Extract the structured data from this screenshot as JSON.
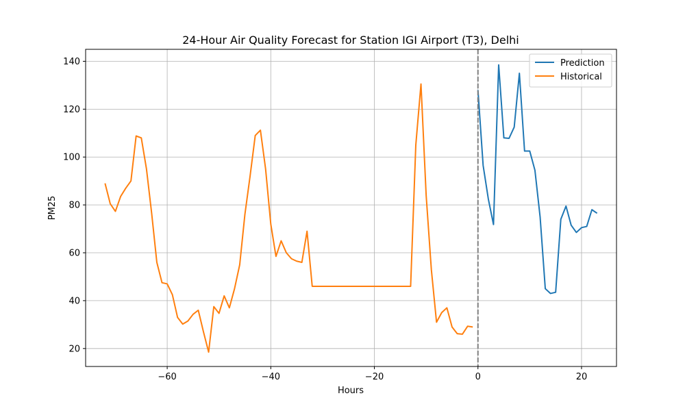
{
  "chart_data": {
    "type": "line",
    "title": "24-Hour Air Quality Forecast for Station IGI Airport (T3), Delhi",
    "xlabel": "Hours",
    "ylabel": "PM25",
    "xlim": [
      -75.75,
      26.75
    ],
    "ylim": [
      12.5,
      145
    ],
    "xticks": [
      -60,
      -40,
      -20,
      0,
      20
    ],
    "yticks": [
      20,
      40,
      60,
      80,
      100,
      120,
      140
    ],
    "grid": true,
    "legend": "top-right",
    "vline": {
      "x": 0,
      "color": "#808080",
      "style": "dashed"
    },
    "series": [
      {
        "name": "Prediction",
        "color": "#1f77b4",
        "x": [
          0,
          1,
          2,
          3,
          4,
          5,
          6,
          7,
          8,
          9,
          10,
          11,
          12,
          13,
          14,
          15,
          16,
          17,
          18,
          19,
          20,
          21,
          22,
          23
        ],
        "y": [
          128,
          96.5,
          82.5,
          71.8,
          138.5,
          108,
          107.8,
          112.5,
          135,
          102.5,
          102.5,
          94.5,
          75,
          45,
          43,
          43.5,
          74,
          79.5,
          71.5,
          68.5,
          70.5,
          71,
          78,
          76.5
        ]
      },
      {
        "name": "Historical",
        "color": "#ff7f0e",
        "x": [
          -72,
          -71,
          -70,
          -69,
          -68,
          -67,
          -66,
          -65,
          -64,
          -63,
          -62,
          -61,
          -60,
          -59,
          -58,
          -57,
          -56,
          -55,
          -54,
          -53,
          -52,
          -51,
          -50,
          -49,
          -48,
          -47,
          -46,
          -45,
          -44,
          -43,
          -42,
          -41,
          -40,
          -39,
          -38,
          -37,
          -36,
          -35,
          -34,
          -33,
          -32,
          -31,
          -30,
          -29,
          -28,
          -27,
          -26,
          -25,
          -24,
          -23,
          -22,
          -21,
          -20,
          -19,
          -18,
          -17,
          -16,
          -15,
          -14,
          -13,
          -12,
          -11,
          -10,
          -9,
          -8,
          -7,
          -6,
          -5,
          -4,
          -3,
          -2,
          -1
        ],
        "y": [
          89,
          80.5,
          77.3,
          83.5,
          87,
          90,
          108.8,
          108,
          95,
          76.5,
          56,
          47.5,
          47,
          42.5,
          33,
          30.2,
          31.5,
          34.3,
          36,
          27,
          18.5,
          37.5,
          34.7,
          42,
          37,
          45,
          55,
          76,
          92,
          109,
          111.2,
          95,
          72,
          58.5,
          65,
          60,
          57.5,
          56.5,
          56,
          69,
          46,
          46,
          46,
          46,
          46,
          46,
          46,
          46,
          46,
          46,
          46,
          46,
          46,
          46,
          46,
          46,
          46,
          46,
          46,
          46,
          105,
          130.5,
          84,
          53,
          31,
          35,
          37,
          29,
          26.2,
          26,
          29.3,
          29
        ]
      }
    ]
  }
}
